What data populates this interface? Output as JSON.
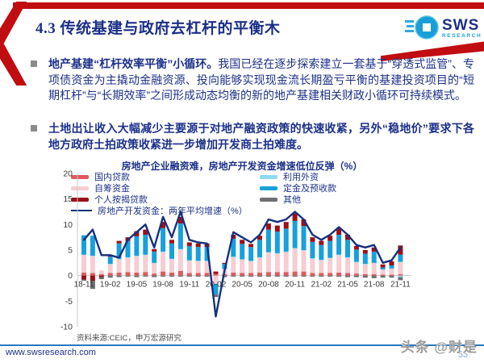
{
  "header": {
    "title": "4.3 传统基建与政府去杠杆的平衡木",
    "logo": {
      "text": "SWS",
      "subtext": "RESEARCH"
    }
  },
  "bullets": [
    {
      "lead": "地产基建“杠杆效率平衡”小循环。",
      "text": "我国已经在逐步探索建立一套基于“穿透式监管”、专项债资金为主撬动金融资源、投向能够实现现金流长期盈亏平衡的基建投资项目的“短期杠杆”与“长期效率”之间形成动态均衡的新的地产基建相关财政小循环可持续模式。"
    },
    {
      "lead": "土地出让收入大幅减少主要源于对地产融资政策的快速收紧，另外“稳地价”要求下各地方政府土拍政策收紧进一步增加开发商土拍难度。",
      "text": ""
    }
  ],
  "chart_data": {
    "type": "bar",
    "subtype": "stacked-bar-with-line",
    "title": "房地产企业融资难，房地产开发资金增速低位反弹（%）",
    "ylim": [
      -10,
      20
    ],
    "yticks": [
      20,
      15,
      10,
      5,
      0,
      -5,
      -10
    ],
    "x_label_every": 3,
    "legend_position": "top",
    "categories": [
      "18-11",
      "18-12",
      "19-01",
      "19-02",
      "19-03",
      "19-04",
      "19-05",
      "19-06",
      "19-07",
      "19-08",
      "19-09",
      "19-10",
      "19-11",
      "19-12",
      "20-01",
      "20-02",
      "20-03",
      "20-04",
      "20-05",
      "20-06",
      "20-07",
      "20-08",
      "20-09",
      "20-10",
      "20-11",
      "20-12",
      "21-01",
      "21-02",
      "21-03",
      "21-04",
      "21-05",
      "21-06",
      "21-07",
      "21-08",
      "21-09",
      "21-10",
      "21-11"
    ],
    "series": [
      {
        "name": "国内贷款",
        "type": "bar",
        "color": "#e0595c",
        "values": [
          0.6,
          0.5,
          0.3,
          0.5,
          0.6,
          0.7,
          0.6,
          0.7,
          0.4,
          0.8,
          0.6,
          0.9,
          0.5,
          0.5,
          0.5,
          0.3,
          0.3,
          0.6,
          0.5,
          0.5,
          0.6,
          0.7,
          0.7,
          0.7,
          0.8,
          0.8,
          0.5,
          0.5,
          0.5,
          0.6,
          0.5,
          0.4,
          0.3,
          0.3,
          0.2,
          0.2,
          0.3
        ]
      },
      {
        "name": "自筹资金",
        "type": "bar",
        "color": "#f5cdd2",
        "values": [
          3.4,
          3.3,
          0.7,
          1.7,
          2.6,
          2.8,
          3.2,
          3.3,
          2.0,
          3.8,
          2.6,
          4.2,
          2.4,
          2.3,
          2.3,
          -1.6,
          1.0,
          3.0,
          2.6,
          2.3,
          2.9,
          3.8,
          3.6,
          3.9,
          4.5,
          4.1,
          2.8,
          2.5,
          2.9,
          3.4,
          3.0,
          2.2,
          1.9,
          2.1,
          1.0,
          1.2,
          2.4
        ]
      },
      {
        "name": "利用外资",
        "type": "bar",
        "color": "#8fd9f2",
        "values": [
          0.1,
          0.1,
          0,
          0.1,
          0.1,
          0.1,
          0.1,
          0.1,
          0.1,
          0.1,
          0.1,
          0.1,
          0.1,
          0.1,
          0.1,
          0,
          0,
          0.1,
          0.1,
          0.1,
          0.1,
          0.1,
          0.1,
          0.1,
          0.1,
          0.1,
          0.1,
          0.1,
          0.1,
          0.1,
          0.1,
          0.1,
          0.1,
          0.1,
          0,
          0,
          -0.3
        ]
      },
      {
        "name": "定金及预收款",
        "type": "bar",
        "color": "#17a0dc",
        "values": [
          3.8,
          3.9,
          0,
          1.4,
          3.0,
          3.2,
          3.8,
          3.9,
          2.2,
          4.6,
          3.0,
          5.0,
          2.8,
          2.7,
          2.7,
          -2.1,
          1.0,
          3.5,
          3.0,
          2.7,
          3.4,
          4.4,
          4.2,
          4.5,
          5.3,
          4.7,
          3.2,
          2.9,
          3.3,
          3.9,
          3.4,
          2.4,
          2.0,
          2.2,
          0.4,
          0.6,
          1.4
        ]
      },
      {
        "name": "个人按揭贷款",
        "type": "bar",
        "color": "#9b1016",
        "values": [
          -0.8,
          -1.0,
          -0.3,
          0.3,
          0.5,
          0.7,
          1.0,
          1.0,
          0.5,
          1.2,
          0.7,
          1.3,
          0.7,
          0.7,
          0.7,
          0.5,
          0.2,
          0.8,
          0.8,
          0.6,
          0.8,
          1.2,
          1.2,
          1.3,
          1.5,
          1.3,
          0.9,
          0.8,
          1.0,
          1.2,
          1.0,
          0.7,
          0.7,
          0.8,
          0.6,
          0.8,
          1.8
        ]
      },
      {
        "name": "其他",
        "type": "bar",
        "color": "#6e6f72",
        "values": [
          -0.2,
          -1.6,
          -0.4,
          -0.4,
          -0.3,
          -0.2,
          -0.3,
          -0.2,
          -0.3,
          -0.2,
          -0.2,
          -0.2,
          -0.2,
          -0.2,
          -0.2,
          -0.5,
          -0.3,
          -0.2,
          -0.2,
          -0.2,
          -0.2,
          -0.2,
          -0.2,
          -0.2,
          -0.2,
          -0.2,
          -0.2,
          -0.2,
          -0.2,
          -0.2,
          -0.3,
          -0.3,
          -0.4,
          -0.5,
          -0.4,
          -0.4,
          -0.6
        ]
      },
      {
        "name": "房地产开发资金：两年平均增速（%）",
        "type": "line",
        "color": "#15317e",
        "values": [
          7,
          9,
          4,
          4,
          3.5,
          7,
          8.5,
          10,
          5.5,
          11.5,
          7.5,
          12.5,
          7,
          6.5,
          6.3,
          -8,
          1,
          8.5,
          7.5,
          6.5,
          8,
          11,
          10.5,
          11,
          12.5,
          11,
          8,
          7,
          8,
          9.5,
          8,
          6,
          5.5,
          6,
          2.5,
          3,
          5.5
        ]
      }
    ],
    "legend_layout": {
      "left": [
        0,
        1,
        4,
        6
      ],
      "right": [
        2,
        3,
        5
      ]
    }
  },
  "source": "资料来源:CEIC，申万宏源研究",
  "footer": {
    "url": "www.swsresearch.com",
    "page": "55",
    "watermark": "头条 @财是"
  }
}
